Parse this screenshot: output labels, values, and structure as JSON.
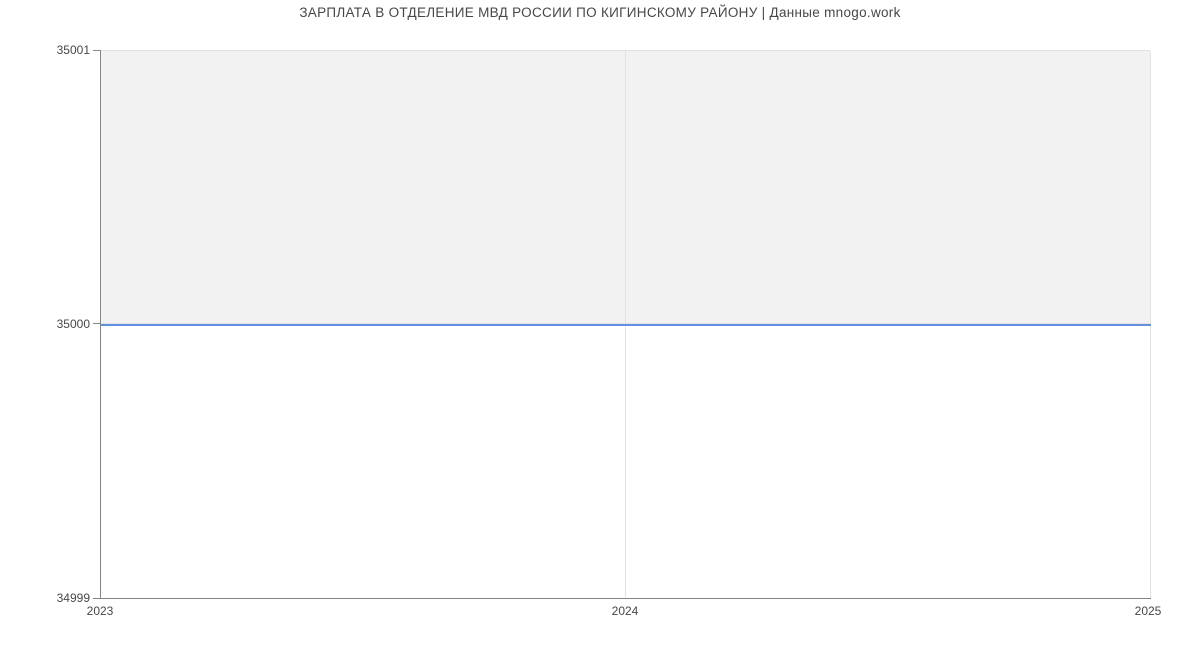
{
  "chart_data": {
    "type": "line",
    "title": "ЗАРПЛАТА В ОТДЕЛЕНИЕ МВД РОССИИ ПО КИГИНСКОМУ РАЙОНУ | Данные mnogo.work",
    "x": [
      2023,
      2024,
      2025
    ],
    "series": [
      {
        "values": [
          35000,
          35000,
          35000
        ]
      }
    ],
    "xlabel": "",
    "ylabel": "",
    "xlim": [
      2023,
      2025
    ],
    "ylim": [
      34999,
      35001
    ],
    "xtick_labels": [
      "2023",
      "2024",
      "2025"
    ],
    "ytick_labels": [
      "35001",
      "35000",
      "34999"
    ],
    "grid": true,
    "legend": false,
    "fill_above_line": true,
    "colors": {
      "line": "#6291e0",
      "fill": "#f2f2f2",
      "grid": "#e2e2e2",
      "axis": "#858585",
      "text": "#474747"
    }
  }
}
